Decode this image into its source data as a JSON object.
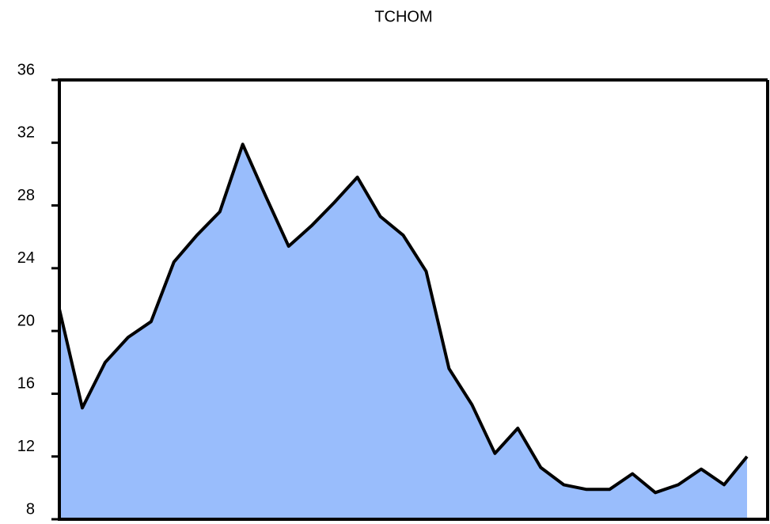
{
  "chart_data": {
    "type": "area",
    "title": "TCHOM",
    "categories": [
      null,
      null,
      null,
      null,
      null,
      null,
      null,
      null,
      null,
      null,
      null,
      null,
      null,
      null,
      null,
      null,
      null,
      null,
      null,
      null,
      null,
      null,
      null,
      null,
      null,
      null,
      null,
      null,
      null,
      null,
      null
    ],
    "values": [
      21.4,
      15.1,
      18.0,
      19.6,
      20.6,
      24.4,
      26.1,
      27.6,
      31.9,
      28.6,
      25.4,
      26.7,
      28.2,
      29.8,
      27.3,
      26.1,
      23.8,
      17.6,
      15.3,
      12.2,
      13.8,
      11.3,
      10.2,
      9.9,
      9.9,
      10.9,
      9.7,
      10.2,
      11.2,
      10.2,
      12.0
    ],
    "color": "#99bdfc",
    "ylim": [
      8,
      36
    ],
    "yticks": [
      8,
      12,
      16,
      20,
      24,
      28,
      32,
      36
    ],
    "grid": false
  }
}
